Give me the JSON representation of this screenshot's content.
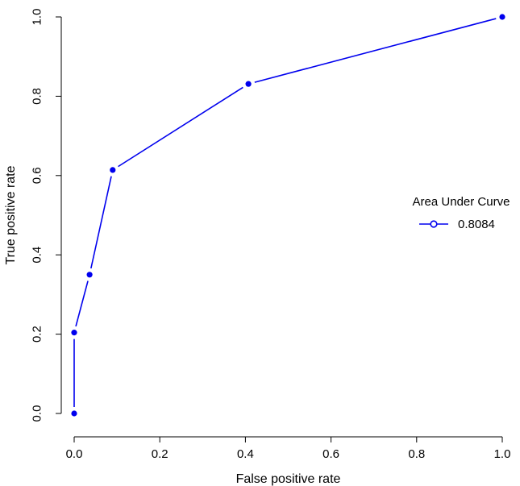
{
  "chart_data": {
    "type": "line",
    "xlabel": "False positive rate",
    "ylabel": "True positive rate",
    "xlim": [
      0,
      1
    ],
    "ylim": [
      0,
      1
    ],
    "x_ticks": [
      0.0,
      0.2,
      0.4,
      0.6,
      0.8,
      1.0
    ],
    "y_ticks": [
      0.0,
      0.2,
      0.4,
      0.6,
      0.8,
      1.0
    ],
    "x_tick_labels": [
      "0.0",
      "0.2",
      "0.4",
      "0.6",
      "0.8",
      "1.0"
    ],
    "y_tick_labels": [
      "0.0",
      "0.2",
      "0.4",
      "0.6",
      "0.8",
      "1.0"
    ],
    "grid": false,
    "legend": {
      "title": "Area Under Curve",
      "placement": "right",
      "entries": [
        "0.8084"
      ]
    },
    "series": [
      {
        "name": "0.8084",
        "color": "#0000ee",
        "x": [
          0.0,
          0.0,
          0.036,
          0.09,
          0.407,
          1.0
        ],
        "y": [
          0.0,
          0.204,
          0.35,
          0.614,
          0.831,
          1.0
        ]
      }
    ]
  }
}
